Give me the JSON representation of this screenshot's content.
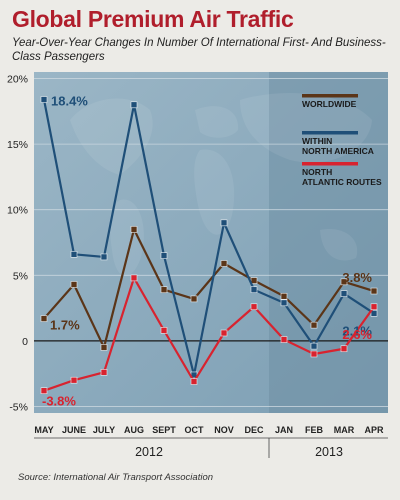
{
  "title": "Global Premium Air Traffic",
  "subtitle": "Year-Over-Year Changes In Number Of International First- And Business-Class Passengers",
  "source": "Source: International Air Transport Association",
  "chart_data": {
    "type": "line",
    "categories": [
      "MAY",
      "JUNE",
      "JULY",
      "AUG",
      "SEPT",
      "OCT",
      "NOV",
      "DEC",
      "JAN",
      "FEB",
      "MAR",
      "APR"
    ],
    "year_labels": [
      "2012",
      "2013"
    ],
    "year_groups": [
      {
        "label": "2012",
        "from": 0,
        "to": 7
      },
      {
        "label": "2013",
        "from": 8,
        "to": 11
      }
    ],
    "y_ticks": [
      "20%",
      "15%",
      "10%",
      "5%",
      "0",
      "-5%"
    ],
    "y_tick_values": [
      20,
      15,
      10,
      5,
      0,
      -5
    ],
    "ylim": [
      -5.5,
      20.5
    ],
    "grid": true,
    "legend_position": "top-right",
    "series": [
      {
        "name": "WORLDWIDE",
        "color": "#5b3518",
        "values": [
          1.7,
          4.3,
          -0.5,
          8.5,
          3.9,
          3.2,
          5.9,
          4.6,
          3.4,
          1.2,
          4.5,
          3.8
        ]
      },
      {
        "name": "WITHIN NORTH AMERICA",
        "color": "#1f4f78",
        "values": [
          18.4,
          6.6,
          6.4,
          18.0,
          6.5,
          -2.6,
          9.0,
          3.9,
          2.9,
          -0.4,
          3.6,
          2.1
        ]
      },
      {
        "name": "NORTH ATLANTIC ROUTES",
        "color": "#d8232f",
        "values": [
          -3.8,
          -3.0,
          -2.4,
          4.8,
          0.8,
          -3.1,
          0.6,
          2.6,
          0.1,
          -1.0,
          -0.6,
          2.6
        ]
      }
    ],
    "annotations": [
      {
        "text": "18.4%",
        "series": "WITHIN NORTH AMERICA",
        "index": 0,
        "color": "#1f4f78"
      },
      {
        "text": "1.7%",
        "series": "WORLDWIDE",
        "index": 0,
        "color": "#5b3518"
      },
      {
        "text": "-3.8%",
        "series": "NORTH ATLANTIC ROUTES",
        "index": 0,
        "color": "#d8232f"
      },
      {
        "text": "3.8%",
        "series": "WORLDWIDE",
        "index": 11,
        "color": "#5b3518"
      },
      {
        "text": "2.1%",
        "series": "WITHIN NORTH AMERICA",
        "index": 11,
        "color": "#1f4f78"
      },
      {
        "text": "2.6%",
        "series": "NORTH ATLANTIC ROUTES",
        "index": 11,
        "color": "#d8232f"
      }
    ]
  }
}
